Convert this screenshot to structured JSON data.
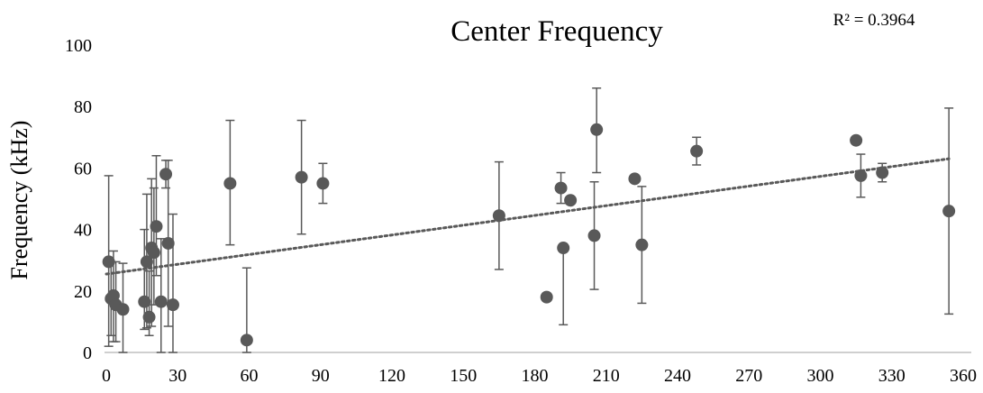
{
  "chart_data": {
    "type": "scatter",
    "title": "Center Frequency",
    "xlabel": "",
    "ylabel": "Frequency (kHz)",
    "xlim": [
      0,
      360
    ],
    "ylim": [
      0,
      100
    ],
    "xticks": [
      0,
      30,
      60,
      90,
      120,
      150,
      180,
      210,
      240,
      270,
      300,
      330,
      360
    ],
    "yticks": [
      0,
      20,
      40,
      60,
      80,
      100
    ],
    "grid": false,
    "legend": "none",
    "marker_color": "#595959",
    "trendline": {
      "type": "linear",
      "style": "dotted",
      "x_start": 0,
      "y_start": 25.5,
      "x_end": 354,
      "y_end": 63,
      "r2_label": "R² = 0.3964"
    },
    "points": [
      {
        "x": 1,
        "y": 29.5,
        "err_low": 27.5,
        "err_high": 28
      },
      {
        "x": 2,
        "y": 17.5,
        "err_low": 12,
        "err_high": 12
      },
      {
        "x": 3,
        "y": 18.5,
        "err_low": 15,
        "err_high": 14.5
      },
      {
        "x": 4,
        "y": 15.5,
        "err_low": 12,
        "err_high": 14
      },
      {
        "x": 7,
        "y": 14,
        "err_low": 14,
        "err_high": 15
      },
      {
        "x": 16,
        "y": 16.5,
        "err_low": 9,
        "err_high": 23.5
      },
      {
        "x": 17,
        "y": 29.5,
        "err_low": 21.5,
        "err_high": 22
      },
      {
        "x": 18,
        "y": 11.5,
        "err_low": 6,
        "err_high": 15
      },
      {
        "x": 19,
        "y": 34,
        "err_low": 25.5,
        "err_high": 22.5
      },
      {
        "x": 20,
        "y": 32.5,
        "err_low": 17,
        "err_high": 21
      },
      {
        "x": 21,
        "y": 41,
        "err_low": 16,
        "err_high": 23
      },
      {
        "x": 23,
        "y": 16.5,
        "err_low": 16.5,
        "err_high": 20.5
      },
      {
        "x": 25,
        "y": 58,
        "err_low": 4.5,
        "err_high": 4.5
      },
      {
        "x": 26,
        "y": 35.5,
        "err_low": 27,
        "err_high": 27
      },
      {
        "x": 28,
        "y": 15.5,
        "err_low": 15.5,
        "err_high": 29.5
      },
      {
        "x": 52,
        "y": 55,
        "err_low": 20,
        "err_high": 20.5
      },
      {
        "x": 59,
        "y": 4,
        "err_low": 4,
        "err_high": 23.5
      },
      {
        "x": 82,
        "y": 57,
        "err_low": 18.5,
        "err_high": 18.5
      },
      {
        "x": 91,
        "y": 55,
        "err_low": 6.5,
        "err_high": 6.5
      },
      {
        "x": 165,
        "y": 44.5,
        "err_low": 17.5,
        "err_high": 17.5
      },
      {
        "x": 185,
        "y": 18,
        "err_low": 0,
        "err_high": 0
      },
      {
        "x": 191,
        "y": 53.5,
        "err_low": 5,
        "err_high": 5
      },
      {
        "x": 192,
        "y": 34,
        "err_low": 25,
        "err_high": 0
      },
      {
        "x": 195,
        "y": 49.5,
        "err_low": 0,
        "err_high": 0
      },
      {
        "x": 205,
        "y": 38,
        "err_low": 17.5,
        "err_high": 17.5
      },
      {
        "x": 206,
        "y": 72.5,
        "err_low": 14,
        "err_high": 13.5
      },
      {
        "x": 222,
        "y": 56.5,
        "err_low": 0,
        "err_high": 0
      },
      {
        "x": 225,
        "y": 35,
        "err_low": 19,
        "err_high": 19
      },
      {
        "x": 248,
        "y": 65.5,
        "err_low": 4.5,
        "err_high": 4.5
      },
      {
        "x": 315,
        "y": 69,
        "err_low": 0,
        "err_high": 0
      },
      {
        "x": 317,
        "y": 57.5,
        "err_low": 7,
        "err_high": 7
      },
      {
        "x": 326,
        "y": 58.5,
        "err_low": 3,
        "err_high": 3
      },
      {
        "x": 354,
        "y": 46,
        "err_low": 33.5,
        "err_high": 33.5
      }
    ]
  }
}
